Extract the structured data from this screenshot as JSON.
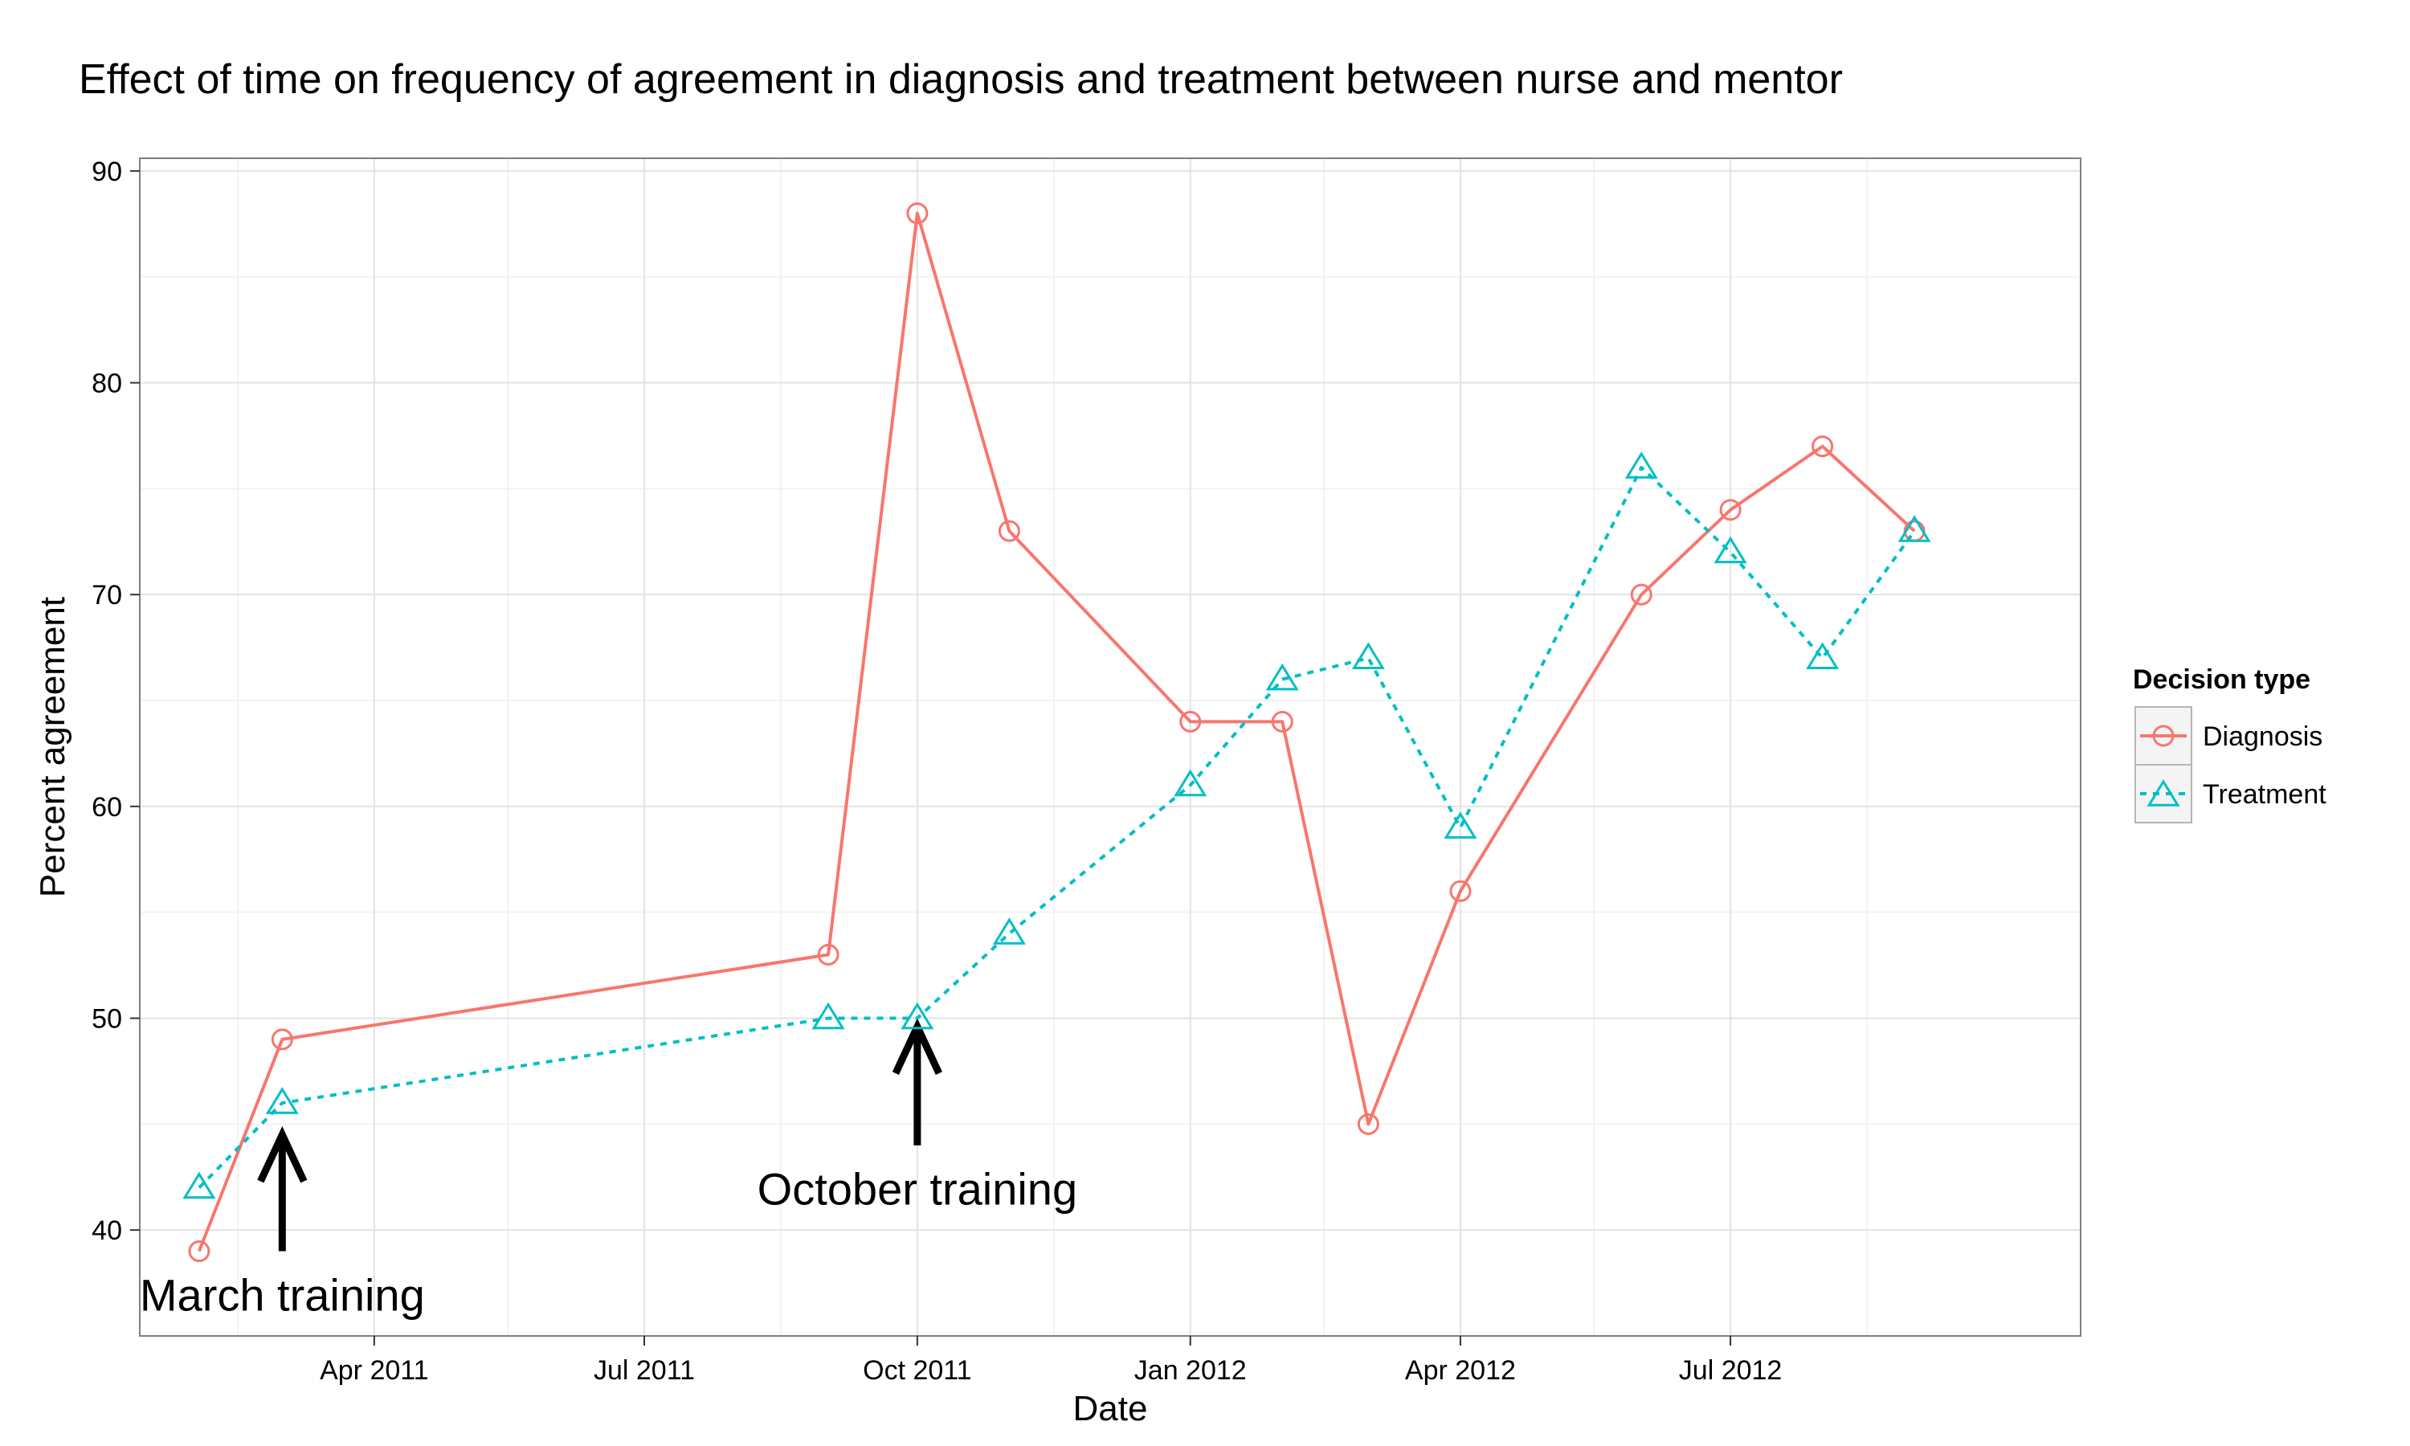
{
  "chart_data": {
    "type": "line",
    "title": "Effect of time on frequency of agreement in diagnosis and treatment between nurse and mentor",
    "xlabel": "Date",
    "ylabel": "Percent agreement",
    "x_type": "date",
    "xlim": [
      "2011-01-12",
      "2012-10-27"
    ],
    "ylim": [
      35,
      90.6
    ],
    "x_ticks": [
      {
        "date": "2011-04-01",
        "label": "Apr 2011"
      },
      {
        "date": "2011-07-01",
        "label": "Jul 2011"
      },
      {
        "date": "2011-10-01",
        "label": "Oct 2011"
      },
      {
        "date": "2012-01-01",
        "label": "Jan 2012"
      },
      {
        "date": "2012-04-01",
        "label": "Apr 2012"
      },
      {
        "date": "2012-07-01",
        "label": "Jul 2012"
      }
    ],
    "x_minor_ticks": [
      "2011-02-14",
      "2011-05-16",
      "2011-08-16",
      "2011-11-16",
      "2012-02-15",
      "2012-05-16",
      "2012-08-16"
    ],
    "y_ticks": [
      40,
      50,
      60,
      70,
      80,
      90
    ],
    "y_minor_ticks": [
      45,
      55,
      65,
      75,
      85
    ],
    "grid": true,
    "legend": {
      "title": "Decision type",
      "position": "right"
    },
    "series": [
      {
        "name": "Diagnosis",
        "color": "#F8766D",
        "line_style": "solid",
        "marker": "circle",
        "x": [
          "2011-02-01",
          "2011-03-01",
          "2011-09-01",
          "2011-10-01",
          "2011-11-01",
          "2012-01-01",
          "2012-02-01",
          "2012-03-01",
          "2012-04-01",
          "2012-06-01",
          "2012-07-01",
          "2012-08-01",
          "2012-09-01"
        ],
        "values": [
          39,
          49,
          53,
          88,
          73,
          64,
          64,
          45,
          56,
          70,
          74,
          77,
          73
        ]
      },
      {
        "name": "Treatment",
        "color": "#00BFC4",
        "line_style": "dotted",
        "marker": "triangle",
        "x": [
          "2011-02-01",
          "2011-03-01",
          "2011-09-01",
          "2011-10-01",
          "2011-11-01",
          "2012-01-01",
          "2012-02-01",
          "2012-03-01",
          "2012-04-01",
          "2012-06-01",
          "2012-07-01",
          "2012-08-01",
          "2012-09-01"
        ],
        "values": [
          42,
          46,
          50,
          50,
          54,
          61,
          66,
          67,
          59,
          76,
          72,
          67,
          73
        ]
      }
    ],
    "annotations": [
      {
        "text": "March training",
        "x": "2011-03-01",
        "arrow_from": 39,
        "arrow_to": 44.5
      },
      {
        "text": "October training",
        "x": "2011-10-01",
        "arrow_from": 44,
        "arrow_to": 49.6
      }
    ]
  }
}
